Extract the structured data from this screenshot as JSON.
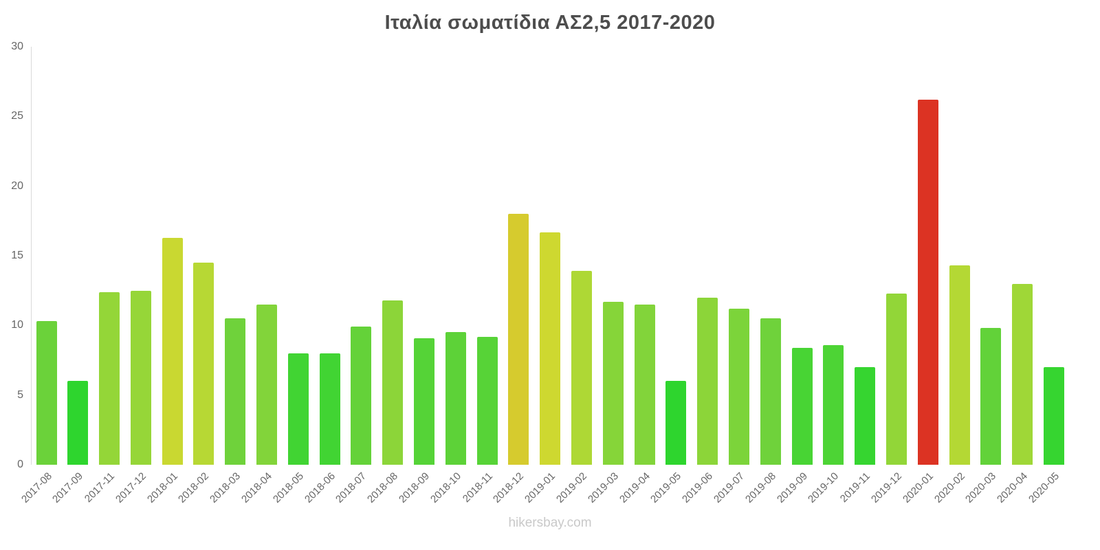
{
  "page": {
    "footer": "hikersbay.com"
  },
  "chart_data": {
    "type": "bar",
    "title": "Ιταλία σωματίδια ΑΣ2,5 2017-2020",
    "xlabel": "",
    "ylabel": "",
    "ylim": [
      0,
      30
    ],
    "yticks": [
      0,
      5,
      10,
      15,
      20,
      25,
      30
    ],
    "grid": false,
    "legend": false,
    "x_tick_rotation": -45,
    "axis_color": "#d9d9d9",
    "label_color": "#666666",
    "title_color": "#4d4d4d",
    "categories": [
      "2017-08",
      "2017-09",
      "2017-11",
      "2017-12",
      "2018-01",
      "2018-02",
      "2018-03",
      "2018-04",
      "2018-05",
      "2018-06",
      "2018-07",
      "2018-08",
      "2018-09",
      "2018-10",
      "2018-11",
      "2018-12",
      "2019-01",
      "2019-02",
      "2019-03",
      "2019-04",
      "2019-05",
      "2019-06",
      "2019-07",
      "2019-08",
      "2019-09",
      "2019-10",
      "2019-11",
      "2019-12",
      "2020-01",
      "2020-02",
      "2020-03",
      "2020-04",
      "2020-05"
    ],
    "values": [
      10.3,
      6.0,
      12.4,
      12.5,
      16.3,
      14.5,
      10.5,
      11.5,
      8.0,
      8.0,
      9.9,
      11.8,
      9.1,
      9.5,
      9.2,
      18.0,
      16.7,
      13.9,
      11.7,
      11.5,
      6.0,
      12.0,
      11.2,
      10.5,
      8.4,
      8.6,
      7.0,
      12.3,
      26.2,
      14.3,
      9.8,
      13.0,
      7.0
    ],
    "colors": [
      "#6bd23a",
      "#2ed52e",
      "#94d638",
      "#96d638",
      "#c9d831",
      "#b7d834",
      "#6fd23b",
      "#82d43a",
      "#41d433",
      "#41d433",
      "#64d239",
      "#8cd539",
      "#55d337",
      "#5dd238",
      "#57d337",
      "#d6cb2e",
      "#ced830",
      "#aed835",
      "#86d539",
      "#82d43a",
      "#2ed52e",
      "#8cd539",
      "#7cd43a",
      "#6fd23b",
      "#48d434",
      "#4dd435",
      "#36d530",
      "#92d638",
      "#dc3323",
      "#b4d834",
      "#62d239",
      "#9fd737",
      "#36d530"
    ]
  }
}
